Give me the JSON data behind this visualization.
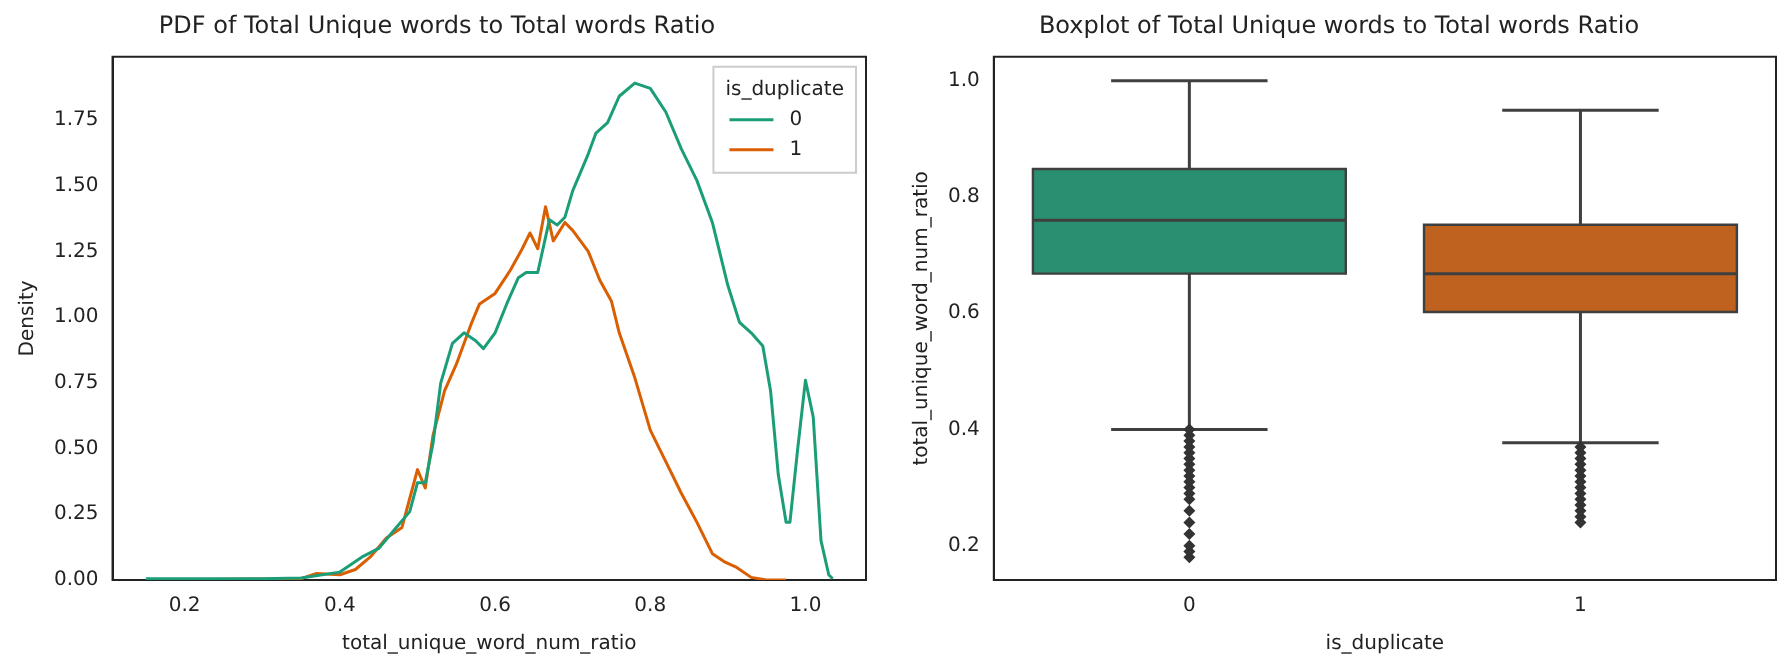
{
  "chart_data": [
    {
      "type": "line",
      "title": "PDF of Total Unique words to Total words Ratio",
      "xlabel": "total_unique_word_num_ratio",
      "ylabel": "Density",
      "legend_title": "is_duplicate",
      "legend": "top right",
      "grid": false,
      "marker": "none",
      "line_style": "solid",
      "xlim": [
        0.107,
        1.078
      ],
      "xticks": [
        0.2,
        0.4,
        0.6,
        0.8,
        {
          "value": 1,
          "label": "1.0"
        }
      ],
      "ylim": [
        0,
        1.99
      ],
      "yticks": [
        {
          "value": 0,
          "label": "0.00"
        },
        {
          "value": 0.25,
          "label": "0.25"
        },
        {
          "value": 0.5,
          "label": "0.50"
        },
        {
          "value": 0.75,
          "label": "0.75"
        },
        {
          "value": 1,
          "label": "1.00"
        },
        {
          "value": 1.25,
          "label": "1.25"
        },
        {
          "value": 1.5,
          "label": "1.50"
        },
        {
          "value": 1.75,
          "label": "1.75"
        }
      ],
      "series": [
        {
          "name": "0",
          "color": "#1b9e77",
          "x": [
            0.15,
            0.3,
            0.35,
            0.4,
            0.43,
            0.45,
            0.47,
            0.49,
            0.5,
            0.51,
            0.52,
            0.53,
            0.545,
            0.56,
            0.575,
            0.585,
            0.6,
            0.615,
            0.63,
            0.64,
            0.655,
            0.67,
            0.68,
            0.69,
            0.7,
            0.72,
            0.73,
            0.745,
            0.76,
            0.78,
            0.8,
            0.82,
            0.84,
            0.86,
            0.88,
            0.9,
            0.915,
            0.93,
            0.945,
            0.955,
            0.965,
            0.975,
            0.98,
            0.99,
            1.0,
            1.01,
            1.02,
            1.03,
            1.035
          ],
          "values": [
            0.005,
            0.005,
            0.008,
            0.03,
            0.09,
            0.12,
            0.19,
            0.26,
            0.37,
            0.37,
            0.52,
            0.75,
            0.9,
            0.94,
            0.91,
            0.88,
            0.94,
            1.05,
            1.15,
            1.17,
            1.17,
            1.37,
            1.35,
            1.38,
            1.48,
            1.62,
            1.7,
            1.74,
            1.84,
            1.89,
            1.87,
            1.78,
            1.64,
            1.52,
            1.36,
            1.12,
            0.98,
            0.94,
            0.89,
            0.72,
            0.4,
            0.22,
            0.22,
            0.5,
            0.76,
            0.62,
            0.15,
            0.02,
            0.005
          ]
        },
        {
          "name": "1",
          "color": "#d95f02",
          "x": [
            0.15,
            0.35,
            0.37,
            0.4,
            0.42,
            0.44,
            0.46,
            0.48,
            0.49,
            0.5,
            0.51,
            0.52,
            0.535,
            0.55,
            0.57,
            0.58,
            0.6,
            0.62,
            0.635,
            0.645,
            0.655,
            0.665,
            0.675,
            0.69,
            0.7,
            0.72,
            0.735,
            0.75,
            0.76,
            0.78,
            0.8,
            0.82,
            0.84,
            0.86,
            0.88,
            0.895,
            0.91,
            0.93,
            0.95,
            0.975
          ],
          "values": [
            0,
            0.005,
            0.025,
            0.02,
            0.04,
            0.09,
            0.16,
            0.2,
            0.31,
            0.42,
            0.35,
            0.55,
            0.72,
            0.82,
            0.98,
            1.05,
            1.09,
            1.18,
            1.26,
            1.32,
            1.26,
            1.42,
            1.29,
            1.36,
            1.33,
            1.25,
            1.14,
            1.06,
            0.94,
            0.77,
            0.57,
            0.45,
            0.33,
            0.22,
            0.1,
            0.07,
            0.05,
            0.01,
            0,
            0
          ]
        }
      ]
    },
    {
      "type": "box",
      "title": "Boxplot of Total Unique words to Total words Ratio",
      "xlabel": "is_duplicate",
      "ylabel": "total_unique_word_num_ratio",
      "grid": false,
      "categories": [
        "0",
        "1"
      ],
      "colors": [
        "#2a8f70",
        "#bf611f"
      ],
      "ylim": [
        0.141,
        1.041
      ],
      "yticks": [
        0.2,
        0.4,
        0.6,
        0.8,
        {
          "value": 1,
          "label": "1.0"
        }
      ],
      "boxes": [
        {
          "low": 0.4,
          "q1": 0.668,
          "median": 0.76,
          "q3": 0.848,
          "high": 1.0,
          "outliers": [
            0.18,
            0.19,
            0.2,
            0.22,
            0.24,
            0.26,
            0.28,
            0.29,
            0.3,
            0.31,
            0.32,
            0.33,
            0.34,
            0.35,
            0.36,
            0.37,
            0.38,
            0.39,
            0.4
          ]
        },
        {
          "low": 0.377,
          "q1": 0.602,
          "median": 0.668,
          "q3": 0.752,
          "high": 0.949,
          "outliers": [
            0.24,
            0.25,
            0.26,
            0.27,
            0.28,
            0.29,
            0.3,
            0.31,
            0.32,
            0.33,
            0.34,
            0.35,
            0.36,
            0.37
          ]
        }
      ]
    }
  ]
}
